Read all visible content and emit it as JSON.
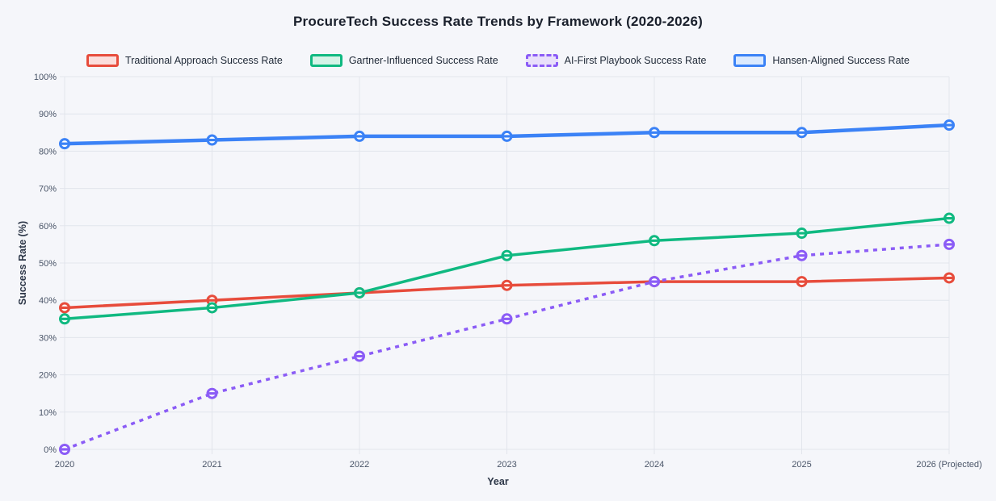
{
  "page": {
    "background": "#f5f6fa"
  },
  "chart_data": {
    "type": "line",
    "title": "ProcureTech Success Rate Trends by Framework (2020-2026)",
    "xlabel": "Year",
    "ylabel": "Success Rate (%)",
    "categories": [
      "2020",
      "2021",
      "2022",
      "2023",
      "2024",
      "2025",
      "2026 (Projected)"
    ],
    "y_ticks": [
      "0%",
      "10%",
      "20%",
      "30%",
      "40%",
      "50%",
      "60%",
      "70%",
      "80%",
      "90%",
      "100%"
    ],
    "ylim": [
      0,
      100
    ],
    "grid": true,
    "legend_position": "top",
    "series": [
      {
        "name": "Traditional Approach Success Rate",
        "color": "#e74c3c",
        "swatch_fill": "#fbdedc",
        "style": "solid",
        "values": [
          38,
          40,
          42,
          44,
          45,
          45,
          46
        ]
      },
      {
        "name": "Gartner-Influenced Success Rate",
        "color": "#10b981",
        "swatch_fill": "#d5f3e7",
        "style": "solid",
        "values": [
          35,
          38,
          42,
          52,
          56,
          58,
          62
        ]
      },
      {
        "name": "AI-First Playbook Success Rate",
        "color": "#8b5cf6",
        "swatch_fill": "#e9e0fb",
        "style": "dashed",
        "values": [
          0,
          15,
          25,
          35,
          45,
          52,
          55
        ]
      },
      {
        "name": "Hansen-Aligned Success Rate",
        "color": "#3b82f6",
        "swatch_fill": "#dbeafe",
        "style": "solid",
        "values": [
          82,
          83,
          84,
          84,
          85,
          85,
          87
        ]
      }
    ]
  }
}
